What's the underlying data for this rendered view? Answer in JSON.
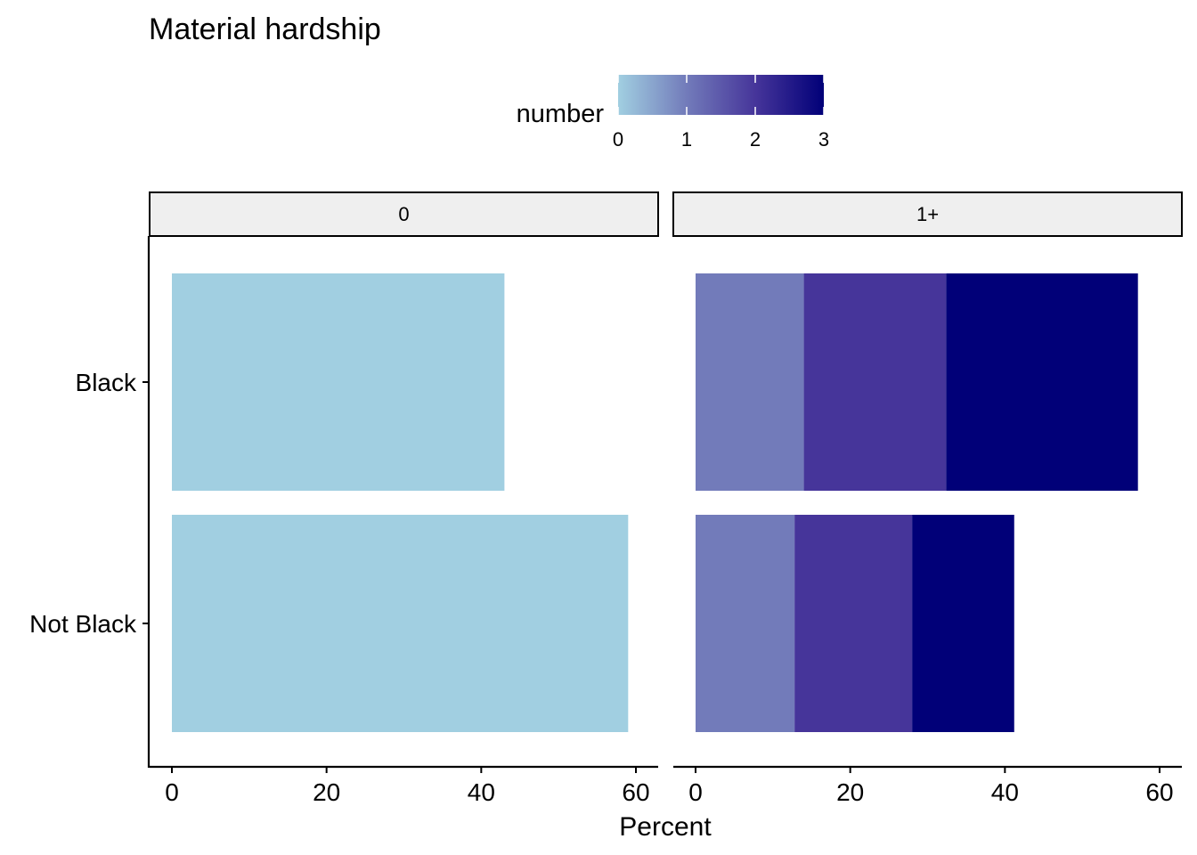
{
  "chart_data": {
    "type": "bar",
    "orientation": "horizontal",
    "stacked": true,
    "title": "Material hardship",
    "xlabel": "Percent",
    "ylabel": "",
    "xlim": [
      0,
      60
    ],
    "xticks": [
      0,
      20,
      40,
      60
    ],
    "categories": [
      "Black",
      "Not Black"
    ],
    "facets": [
      {
        "label": "0",
        "series": [
          {
            "number": 0,
            "color": "#a1cfe1",
            "values": [
              43,
              59
            ]
          }
        ]
      },
      {
        "label": "1+",
        "series": [
          {
            "number": 1,
            "color": "#727bba",
            "values": [
              14,
              12.8
            ]
          },
          {
            "number": 2,
            "color": "#46359a",
            "values": [
              18.4,
              15.2
            ]
          },
          {
            "number": 3,
            "color": "#010078",
            "values": [
              24.8,
              13.2
            ]
          }
        ]
      }
    ],
    "legend": {
      "title": "number",
      "type": "colorbar",
      "min": 0,
      "max": 3,
      "ticks": [
        0,
        1,
        2,
        3
      ],
      "colors": [
        "#a1cfe1",
        "#727bba",
        "#46359a",
        "#010078"
      ],
      "placement": "top"
    },
    "grid": false
  }
}
